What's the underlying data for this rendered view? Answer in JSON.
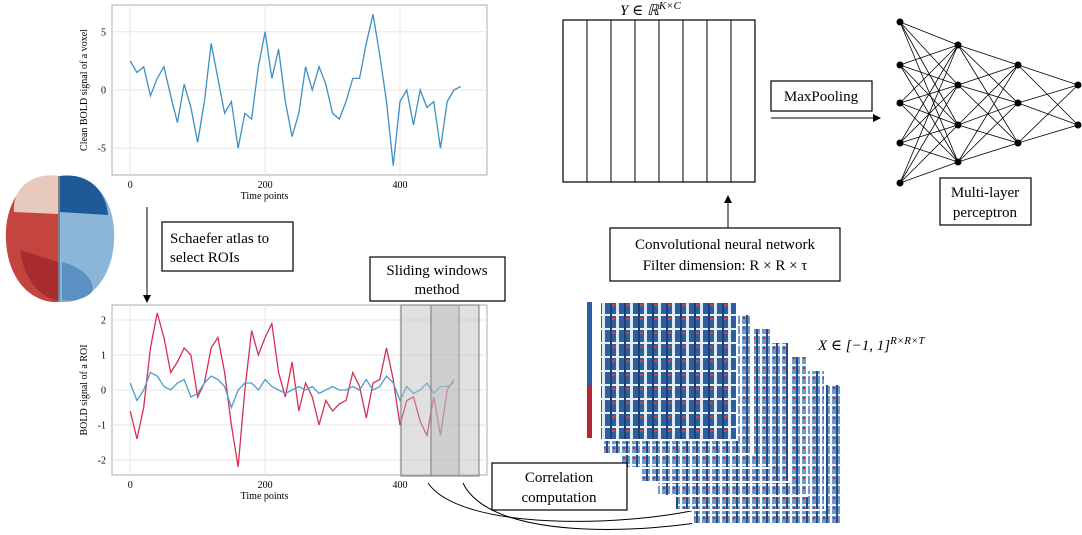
{
  "top_chart": {
    "type": "line",
    "ylabel": "Clean BOLD signal of a voxel",
    "xlabel": "Time points",
    "xlim": [
      -27,
      529
    ],
    "ylim": [
      -7.3,
      7.3
    ],
    "xticks": [
      0,
      200,
      400
    ],
    "yticks": [
      -5,
      0,
      5
    ],
    "grid": true,
    "x": [
      0,
      10,
      20,
      30,
      40,
      50,
      60,
      70,
      80,
      90,
      100,
      110,
      120,
      130,
      140,
      150,
      160,
      170,
      180,
      190,
      200,
      210,
      220,
      230,
      240,
      250,
      260,
      270,
      280,
      290,
      300,
      310,
      320,
      330,
      340,
      350,
      360,
      370,
      380,
      390,
      400,
      410,
      420,
      430,
      440,
      450,
      460,
      470,
      480,
      490
    ],
    "series": [
      {
        "color": "#3d8fc4",
        "values": [
          2.5,
          1.5,
          2,
          -0.5,
          1,
          2,
          -0.5,
          -2.8,
          0.5,
          -1.5,
          -4.5,
          -1,
          4,
          1,
          -2,
          -1,
          -5,
          -2,
          -2.5,
          2,
          5,
          1,
          3.5,
          -1,
          -4,
          -2,
          2,
          0,
          2,
          0.5,
          -2,
          -2.5,
          -1,
          1,
          1,
          4,
          6.5,
          3,
          -1,
          -6.5,
          -1,
          0,
          -3,
          0,
          -1.5,
          -1,
          -5,
          -1,
          0,
          0.3
        ]
      }
    ]
  },
  "bottom_chart": {
    "type": "line",
    "ylabel": "BOLD signal of a ROI",
    "xlabel": "Time points",
    "xlim": [
      -27,
      529
    ],
    "ylim": [
      -2.43,
      2.43
    ],
    "xticks": [
      0,
      200,
      400
    ],
    "yticks": [
      -2,
      -1,
      0,
      1,
      2
    ],
    "grid": true,
    "x": [
      0,
      10,
      20,
      30,
      40,
      50,
      60,
      70,
      80,
      90,
      100,
      110,
      120,
      130,
      140,
      150,
      160,
      170,
      180,
      190,
      200,
      210,
      220,
      230,
      240,
      250,
      260,
      270,
      280,
      290,
      300,
      310,
      320,
      330,
      340,
      350,
      360,
      370,
      380,
      390,
      400,
      410,
      420,
      430,
      440,
      450,
      460,
      470,
      480
    ],
    "series": [
      {
        "color": "#d62f55",
        "values": [
          -0.6,
          -1.4,
          -0.5,
          1.2,
          2.2,
          1.5,
          0.5,
          0.8,
          1.2,
          1.0,
          -0.2,
          0.2,
          1.2,
          1.5,
          0.5,
          -1.0,
          -2.2,
          0,
          1.7,
          1.0,
          1.5,
          1.9,
          0.5,
          -0.2,
          0.8,
          -0.6,
          0.2,
          -0.2,
          -1.0,
          -0.3,
          -0.6,
          -0.4,
          -0.3,
          0.5,
          0.1,
          -0.8,
          0.2,
          0.3,
          1.2,
          0.3,
          -1.0,
          -0.3,
          -0.2,
          -0.9,
          -1.3,
          -0.2,
          -1.3,
          0,
          0.3
        ]
      },
      {
        "color": "#4a9fd0",
        "values": [
          0.2,
          -0.3,
          0,
          0.5,
          0.4,
          0.1,
          0,
          0.2,
          0.3,
          -0.2,
          -0.1,
          0.2,
          0.4,
          0.3,
          0.1,
          -0.5,
          0,
          0.2,
          0.2,
          0,
          0.3,
          0.1,
          0,
          -0.1,
          0,
          0.1,
          0,
          0.1,
          -0.1,
          0,
          0.1,
          0,
          0,
          0.1,
          0,
          0.3,
          0,
          0.1,
          0.4,
          0.2,
          -0.3,
          0.1,
          -0.1,
          0,
          0.2,
          -0.1,
          0.1,
          0.1,
          0.2
        ]
      }
    ]
  },
  "labels": {
    "schaefer": [
      "Schaefer atlas to",
      "select ROIs"
    ],
    "sliding": [
      "Sliding windows",
      "method"
    ],
    "correlation": [
      "Correlation",
      "computation"
    ],
    "cnn": [
      "Convolutional neural network",
      "Filter dimension:  R × R × τ"
    ],
    "maxpooling": "MaxPooling",
    "mlp": [
      "Multi-layer",
      "perceptron"
    ],
    "y_matrix": {
      "base": "Y ∈ ℝ",
      "sup": "K×C"
    },
    "x_tensor": {
      "base": "X ∈ [−1, 1]",
      "sup": "R×R×T"
    }
  }
}
